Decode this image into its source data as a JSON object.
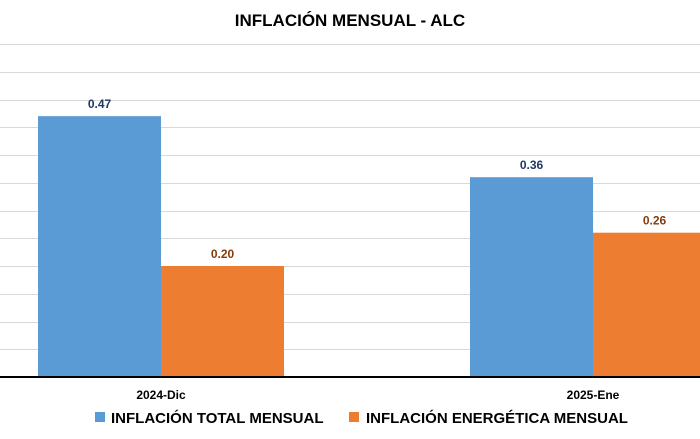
{
  "chart_data": {
    "type": "bar",
    "title": "INFLACIÓN MENSUAL - ALC",
    "categories": [
      "2024-Dic",
      "2025-Ene"
    ],
    "series": [
      {
        "name": "INFLACIÓN TOTAL MENSUAL",
        "values": [
          0.47,
          0.36
        ],
        "color": "#5b9bd5",
        "label_color": "#1f3864"
      },
      {
        "name": "INFLACIÓN ENERGÉTICA MENSUAL",
        "values": [
          0.2,
          0.26
        ],
        "color": "#ed7d31",
        "label_color": "#843c0c"
      }
    ],
    "value_labels": [
      [
        "0.47",
        "0.36"
      ],
      [
        "0.20",
        "0.26"
      ]
    ],
    "ylim": [
      0,
      0.6
    ],
    "grid": true,
    "legend_position": "bottom"
  }
}
